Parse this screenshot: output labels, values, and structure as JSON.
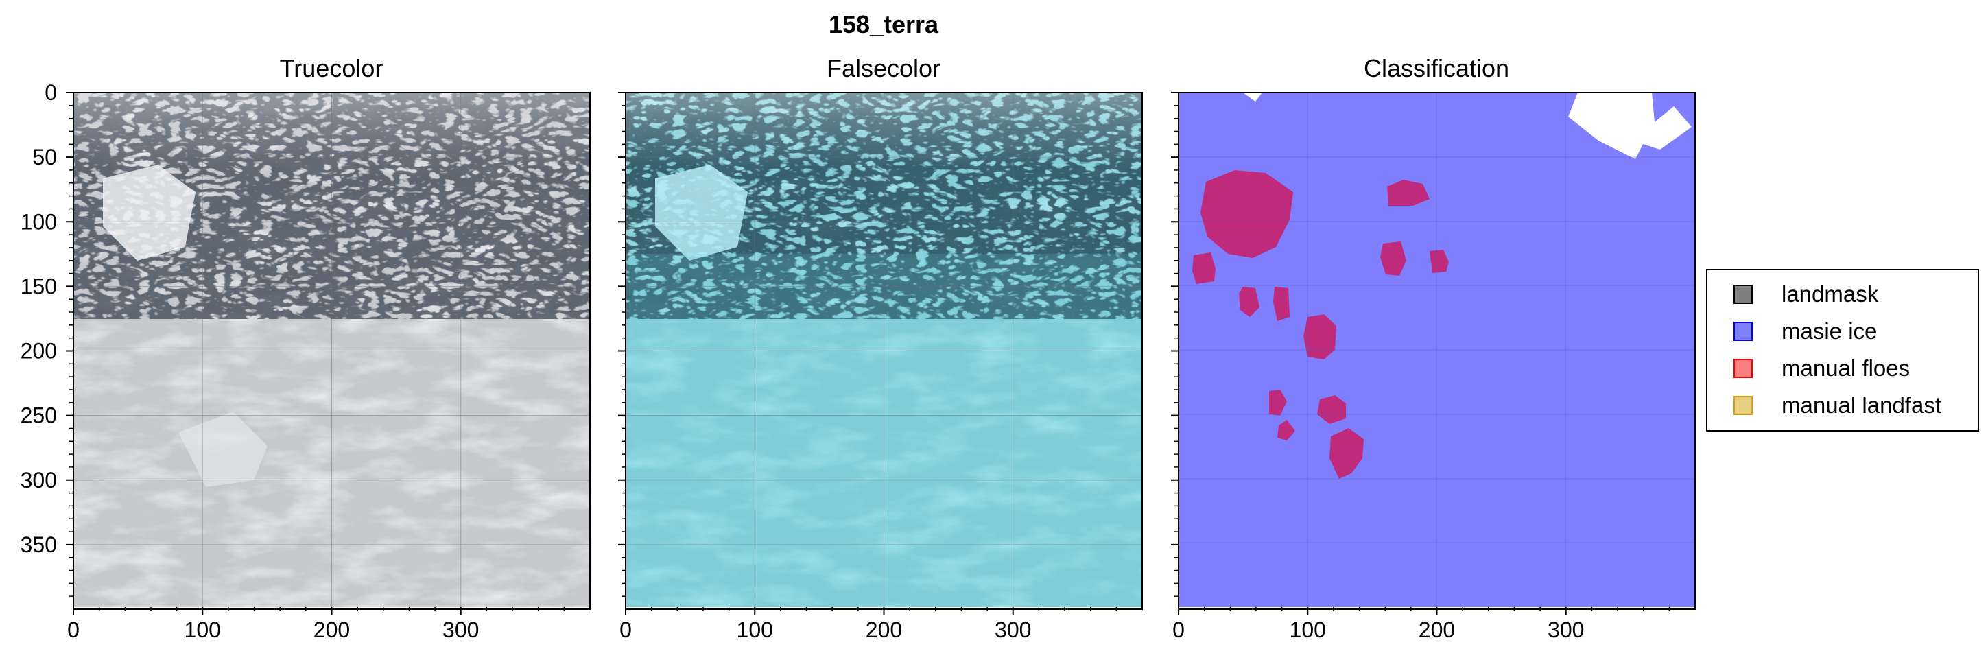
{
  "suptitle": "158_terra",
  "panels": [
    {
      "title": "Truecolor",
      "kind": "truecolor"
    },
    {
      "title": "Falsecolor",
      "kind": "falsecolor"
    },
    {
      "title": "Classification",
      "kind": "classification"
    }
  ],
  "axes": {
    "x_ticks": [
      "0",
      "100",
      "200",
      "300"
    ],
    "y_ticks": [
      "0",
      "50",
      "100",
      "150",
      "200",
      "250",
      "300",
      "350"
    ],
    "x_range": [
      0,
      400
    ],
    "y_range": [
      0,
      400
    ]
  },
  "legend": {
    "placement": "right",
    "items": [
      {
        "label": "landmask",
        "color": "#7f7f7f",
        "edge": "#000000"
      },
      {
        "label": "masie ice",
        "color": "#8080ff",
        "edge": "#0000ff"
      },
      {
        "label": "manual floes",
        "color": "#ff8080",
        "edge": "#ff0000"
      },
      {
        "label": "manual landfast",
        "color": "#e8d080",
        "edge": "#d4a017"
      }
    ]
  },
  "colors": {
    "masie_ice": "#7f7ffd",
    "floes": "#c02a7a",
    "no_data": "#ffffff",
    "truecolor_base": "#c4c6ca",
    "falsecolor_base": "#8fd6e0"
  }
}
